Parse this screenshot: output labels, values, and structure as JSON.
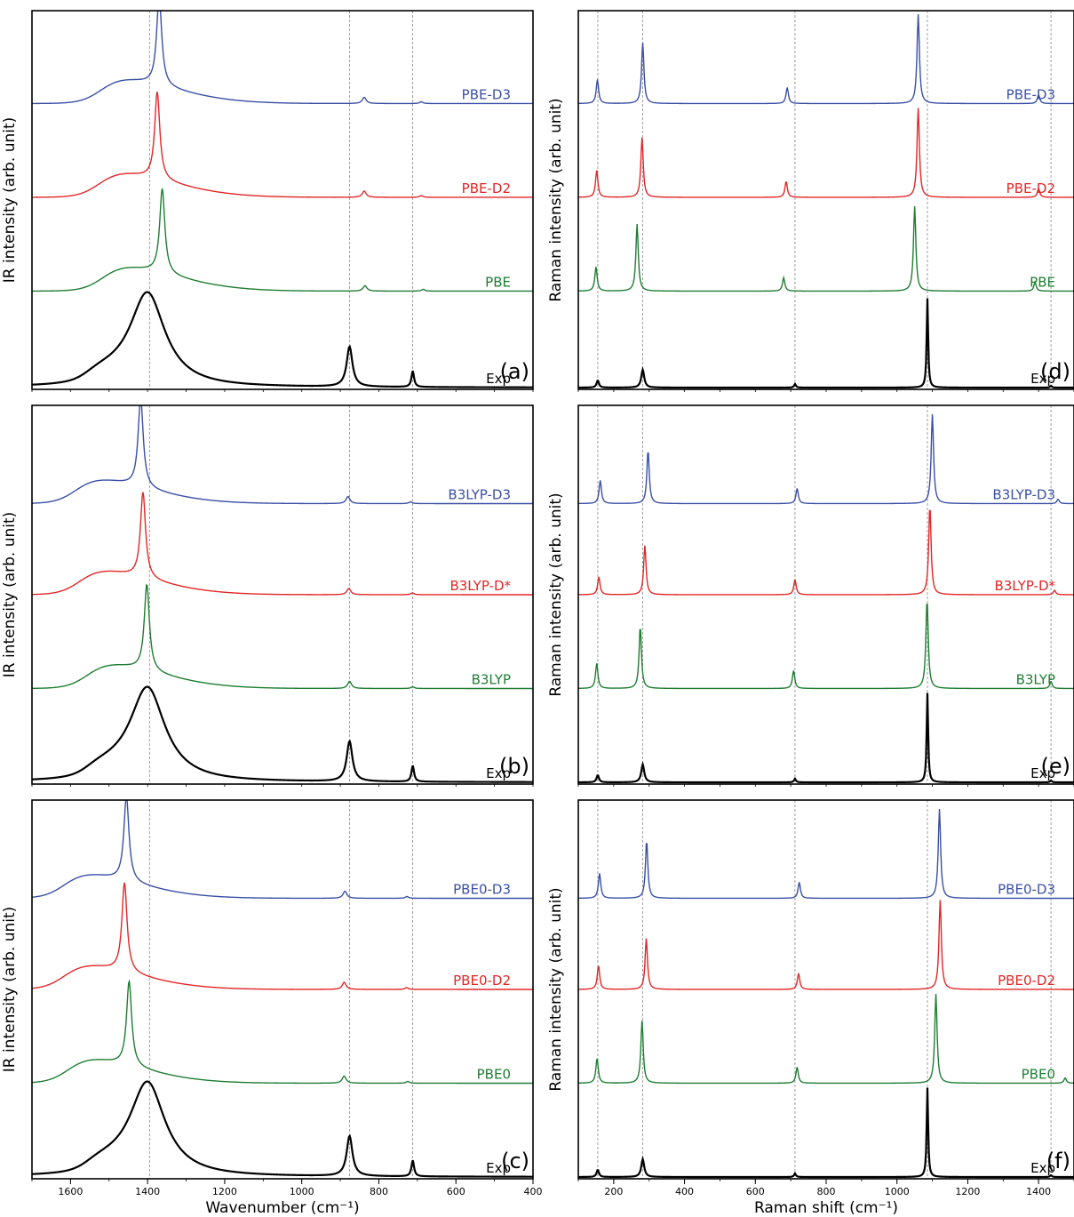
{
  "figure": {
    "colors": {
      "exp": "#000000",
      "green": "#1e7d32",
      "red": "#e32626",
      "blue": "#3a4fa5",
      "guide": "#888888"
    }
  },
  "chart_data": [
    {
      "type": "line",
      "id": "a",
      "panel_label": "(a)",
      "ylabel": "IR intensity (arb. unit)",
      "xlabel": "",
      "xlim": [
        1700,
        400
      ],
      "xticks": [],
      "guides": [
        1395,
        876,
        712
      ],
      "series": [
        {
          "name": "Exp",
          "color": "exp",
          "offset": 0,
          "peaks": [
            [
              1400,
              1.0,
              55
            ],
            [
              876,
              0.45,
              9
            ],
            [
              712,
              0.18,
              4
            ]
          ],
          "shoulder": [
            1555,
            110,
            0.15
          ]
        },
        {
          "name": "PBE",
          "color": "green",
          "offset": 1.08,
          "peaks": [
            [
              1362,
              0.95,
              8
            ],
            [
              836,
              0.06,
              6
            ],
            [
              685,
              0.02,
              5
            ]
          ],
          "shoulder": [
            1515,
            150,
            0.3
          ]
        },
        {
          "name": "PBE-D2",
          "color": "red",
          "offset": 2.13,
          "peaks": [
            [
              1375,
              0.98,
              8
            ],
            [
              838,
              0.07,
              6
            ],
            [
              690,
              0.02,
              5
            ]
          ],
          "shoulder": [
            1525,
            150,
            0.3
          ]
        },
        {
          "name": "PBE-D3",
          "color": "blue",
          "offset": 3.18,
          "peaks": [
            [
              1370,
              1.0,
              8
            ],
            [
              838,
              0.07,
              6
            ],
            [
              690,
              0.02,
              5
            ]
          ],
          "shoulder": [
            1520,
            150,
            0.3
          ]
        }
      ]
    },
    {
      "type": "line",
      "id": "b",
      "panel_label": "(b)",
      "ylabel": "IR intensity (arb. unit)",
      "xlabel": "",
      "xlim": [
        1700,
        400
      ],
      "xticks": [],
      "guides": [
        1395,
        876,
        712
      ],
      "series": [
        {
          "name": "Exp",
          "color": "exp",
          "offset": 0,
          "peaks": [
            [
              1400,
              1.0,
              55
            ],
            [
              876,
              0.45,
              9
            ],
            [
              712,
              0.18,
              4
            ]
          ],
          "shoulder": [
            1555,
            110,
            0.15
          ]
        },
        {
          "name": "B3LYP",
          "color": "green",
          "offset": 1.05,
          "peaks": [
            [
              1402,
              0.97,
              8
            ],
            [
              876,
              0.08,
              6
            ],
            [
              712,
              0.02,
              5
            ]
          ],
          "shoulder": [
            1555,
            150,
            0.3
          ]
        },
        {
          "name": "B3LYP-D*",
          "color": "red",
          "offset": 2.1,
          "peaks": [
            [
              1412,
              0.96,
              8
            ],
            [
              878,
              0.07,
              6
            ],
            [
              713,
              0.02,
              5
            ]
          ],
          "shoulder": [
            1575,
            150,
            0.3
          ]
        },
        {
          "name": "B3LYP-D3",
          "color": "blue",
          "offset": 3.12,
          "peaks": [
            [
              1418,
              1.0,
              8
            ],
            [
              880,
              0.08,
              6
            ],
            [
              718,
              0.02,
              5
            ]
          ],
          "shoulder": [
            1585,
            150,
            0.3
          ]
        }
      ]
    },
    {
      "type": "line",
      "id": "c",
      "panel_label": "(c)",
      "ylabel": "IR intensity (arb. unit)",
      "xlabel": "Wavenumber (cm⁻¹)",
      "xlim": [
        1700,
        400
      ],
      "xticks": [
        1600,
        1400,
        1200,
        1000,
        800,
        600,
        400
      ],
      "guides": [
        1395,
        876,
        712
      ],
      "series": [
        {
          "name": "Exp",
          "color": "exp",
          "offset": 0,
          "peaks": [
            [
              1400,
              1.0,
              55
            ],
            [
              876,
              0.45,
              9
            ],
            [
              712,
              0.18,
              4
            ]
          ],
          "shoulder": [
            1555,
            110,
            0.15
          ]
        },
        {
          "name": "PBE0",
          "color": "green",
          "offset": 1.05,
          "peaks": [
            [
              1448,
              0.95,
              8
            ],
            [
              890,
              0.08,
              6
            ],
            [
              725,
              0.02,
              5
            ]
          ],
          "shoulder": [
            1605,
            150,
            0.3
          ]
        },
        {
          "name": "PBE0-D2",
          "color": "red",
          "offset": 2.1,
          "peaks": [
            [
              1460,
              1.0,
              8
            ],
            [
              890,
              0.08,
              6
            ],
            [
              728,
              0.02,
              5
            ]
          ],
          "shoulder": [
            1615,
            150,
            0.3
          ]
        },
        {
          "name": "PBE0-D3",
          "color": "blue",
          "offset": 3.12,
          "peaks": [
            [
              1455,
              0.95,
              8
            ],
            [
              888,
              0.08,
              6
            ],
            [
              727,
              0.02,
              5
            ]
          ],
          "shoulder": [
            1615,
            150,
            0.3
          ]
        }
      ]
    },
    {
      "type": "line",
      "id": "d",
      "panel_label": "(d)",
      "ylabel": "Raman intensity (arb. unit)",
      "xlabel": "",
      "xlim": [
        100,
        1500
      ],
      "xticks": [],
      "guides": [
        155,
        282,
        712,
        1086,
        1435
      ],
      "series": [
        {
          "name": "Exp",
          "color": "exp",
          "offset": 0,
          "peaks": [
            [
              155,
              0.08,
              4
            ],
            [
              282,
              0.2,
              5
            ],
            [
              712,
              0.04,
              3
            ],
            [
              1086,
              1.0,
              2.5
            ],
            [
              1435,
              0.02,
              3
            ]
          ]
        },
        {
          "name": "PBE",
          "color": "green",
          "offset": 1.08,
          "peaks": [
            [
              150,
              0.27,
              4
            ],
            [
              266,
              0.75,
              4
            ],
            [
              680,
              0.15,
              4
            ],
            [
              1050,
              0.95,
              4
            ],
            [
              1390,
              0.1,
              4
            ]
          ]
        },
        {
          "name": "PBE-D2",
          "color": "red",
          "offset": 2.13,
          "peaks": [
            [
              152,
              0.3,
              4
            ],
            [
              280,
              0.67,
              4
            ],
            [
              687,
              0.18,
              4
            ],
            [
              1060,
              1.0,
              4
            ],
            [
              1400,
              0.1,
              4
            ]
          ]
        },
        {
          "name": "PBE-D3",
          "color": "blue",
          "offset": 3.18,
          "peaks": [
            [
              154,
              0.27,
              4
            ],
            [
              282,
              0.68,
              4
            ],
            [
              690,
              0.18,
              4
            ],
            [
              1060,
              1.0,
              4
            ],
            [
              1400,
              0.1,
              4
            ]
          ]
        }
      ]
    },
    {
      "type": "line",
      "id": "e",
      "panel_label": "(e)",
      "ylabel": "Raman intensity (arb. unit)",
      "xlabel": "",
      "xlim": [
        100,
        1500
      ],
      "xticks": [],
      "guides": [
        155,
        282,
        712,
        1086,
        1435
      ],
      "series": [
        {
          "name": "Exp",
          "color": "exp",
          "offset": 0,
          "peaks": [
            [
              155,
              0.08,
              4
            ],
            [
              282,
              0.2,
              5
            ],
            [
              712,
              0.04,
              3
            ],
            [
              1086,
              1.0,
              2.5
            ],
            [
              1435,
              0.02,
              3
            ]
          ]
        },
        {
          "name": "B3LYP",
          "color": "green",
          "offset": 1.05,
          "peaks": [
            [
              152,
              0.28,
              4
            ],
            [
              275,
              0.7,
              4
            ],
            [
              708,
              0.2,
              4
            ],
            [
              1085,
              1.0,
              4
            ],
            [
              1435,
              0.08,
              4
            ]
          ]
        },
        {
          "name": "B3LYP-D*",
          "color": "red",
          "offset": 2.1,
          "peaks": [
            [
              158,
              0.2,
              4
            ],
            [
              288,
              0.55,
              4
            ],
            [
              712,
              0.17,
              4
            ],
            [
              1093,
              1.0,
              4
            ],
            [
              1445,
              0.05,
              4
            ]
          ]
        },
        {
          "name": "B3LYP-D3",
          "color": "blue",
          "offset": 3.12,
          "peaks": [
            [
              162,
              0.26,
              4
            ],
            [
              297,
              0.6,
              4
            ],
            [
              718,
              0.17,
              4
            ],
            [
              1100,
              1.0,
              4
            ],
            [
              1455,
              0.05,
              4
            ]
          ]
        }
      ]
    },
    {
      "type": "line",
      "id": "f",
      "panel_label": "(f)",
      "ylabel": "Raman intensity (arb. unit)",
      "xlabel": "Raman shift (cm⁻¹)",
      "xlim": [
        100,
        1500
      ],
      "xticks": [
        200,
        400,
        600,
        800,
        1000,
        1200,
        1400
      ],
      "guides": [
        155,
        282,
        712,
        1086,
        1435
      ],
      "series": [
        {
          "name": "Exp",
          "color": "exp",
          "offset": 0,
          "peaks": [
            [
              155,
              0.08,
              4
            ],
            [
              282,
              0.2,
              5
            ],
            [
              712,
              0.04,
              3
            ],
            [
              1086,
              1.0,
              2.5
            ],
            [
              1435,
              0.02,
              3
            ]
          ]
        },
        {
          "name": "PBE0",
          "color": "green",
          "offset": 1.05,
          "peaks": [
            [
              153,
              0.28,
              4
            ],
            [
              280,
              0.7,
              4
            ],
            [
              718,
              0.18,
              4
            ],
            [
              1110,
              1.0,
              4
            ],
            [
              1475,
              0.06,
              4
            ]
          ]
        },
        {
          "name": "PBE0-D2",
          "color": "red",
          "offset": 2.1,
          "peaks": [
            [
              157,
              0.27,
              4
            ],
            [
              292,
              0.57,
              4
            ],
            [
              722,
              0.18,
              4
            ],
            [
              1122,
              1.0,
              4
            ]
          ]
        },
        {
          "name": "PBE0-D3",
          "color": "blue",
          "offset": 3.12,
          "peaks": [
            [
              160,
              0.28,
              4
            ],
            [
              293,
              0.65,
              4
            ],
            [
              724,
              0.18,
              4
            ],
            [
              1120,
              1.0,
              4
            ]
          ]
        }
      ]
    }
  ]
}
